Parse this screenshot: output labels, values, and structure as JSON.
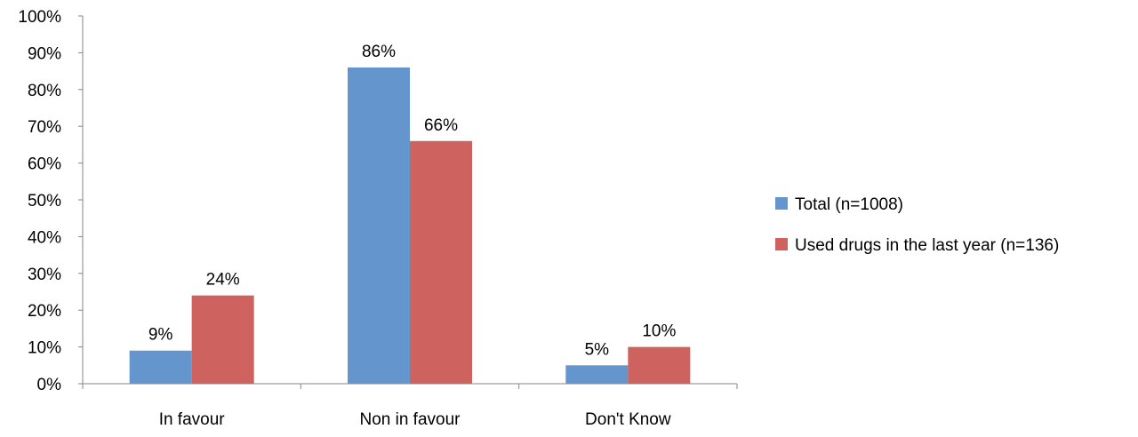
{
  "chart_data": {
    "type": "bar",
    "categories": [
      "In favour",
      "Non in favour",
      "Don't Know"
    ],
    "series": [
      {
        "name": "Total (n=1008)",
        "values": [
          9,
          86,
          5
        ],
        "labels": [
          "9%",
          "86%",
          "5%"
        ],
        "color": "#6495CD"
      },
      {
        "name": "Used drugs in the last year (n=136)",
        "values": [
          24,
          66,
          10
        ],
        "labels": [
          "24%",
          "66%",
          "10%"
        ],
        "color": "#CD625E"
      }
    ],
    "ylim": [
      0,
      100
    ],
    "yticks": [
      0,
      10,
      20,
      30,
      40,
      50,
      60,
      70,
      80,
      90,
      100
    ],
    "ytick_labels": [
      "0%",
      "10%",
      "20%",
      "30%",
      "40%",
      "50%",
      "60%",
      "70%",
      "80%",
      "90%",
      "100%"
    ],
    "title": "",
    "xlabel": "",
    "ylabel": "",
    "grid": false,
    "legend_position": "right"
  }
}
